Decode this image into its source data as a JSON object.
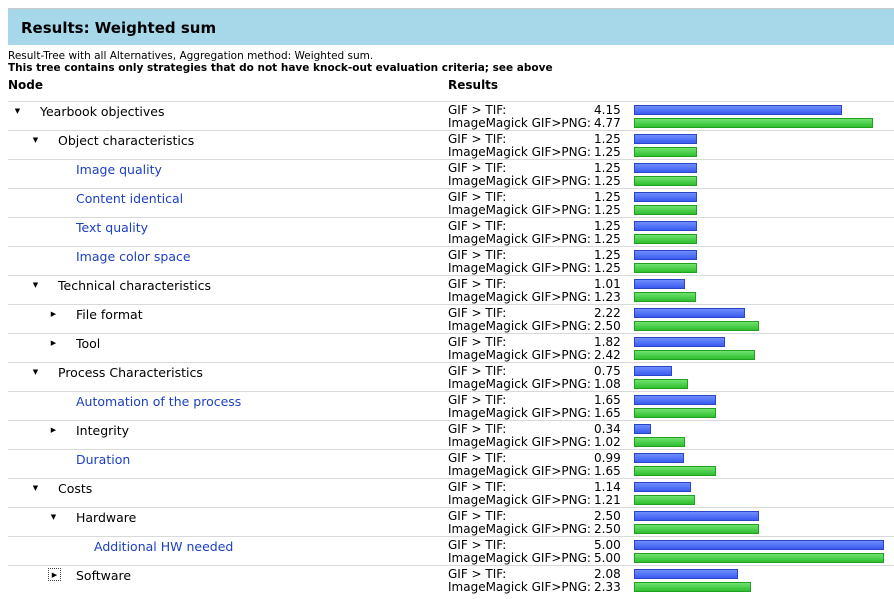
{
  "header": {
    "title": "Results: Weighted sum"
  },
  "description": {
    "line1": "Result-Tree with all Alternatives, Aggregation method: Weighted sum.",
    "line2": "This tree contains only strategies that do not have knock-out evaluation criteria; see above"
  },
  "columns": {
    "node": "Node",
    "results": "Results"
  },
  "alternatives": [
    "GIF > TIF:",
    "ImageMagick GIF>PNG:"
  ],
  "colors": {
    "alt1": "#3a5cf0",
    "alt2": "#2fbf2f",
    "link": "#1c3fc2",
    "header_bg": "#a6d8ea"
  },
  "max_value": 5.0,
  "rows": [
    {
      "label": "Yearbook objectives",
      "level": 0,
      "toggle": "expanded",
      "leaf": false,
      "v1": "4.15",
      "v2": "4.77"
    },
    {
      "label": "Object characteristics",
      "level": 1,
      "toggle": "expanded",
      "leaf": false,
      "v1": "1.25",
      "v2": "1.25"
    },
    {
      "label": "Image quality",
      "level": 2,
      "toggle": "none",
      "leaf": true,
      "v1": "1.25",
      "v2": "1.25"
    },
    {
      "label": "Content identical",
      "level": 2,
      "toggle": "none",
      "leaf": true,
      "v1": "1.25",
      "v2": "1.25"
    },
    {
      "label": "Text quality",
      "level": 2,
      "toggle": "none",
      "leaf": true,
      "v1": "1.25",
      "v2": "1.25"
    },
    {
      "label": "Image color space",
      "level": 2,
      "toggle": "none",
      "leaf": true,
      "v1": "1.25",
      "v2": "1.25"
    },
    {
      "label": "Technical characteristics",
      "level": 1,
      "toggle": "expanded",
      "leaf": false,
      "v1": "1.01",
      "v2": "1.23"
    },
    {
      "label": "File format",
      "level": 2,
      "toggle": "collapsed",
      "leaf": false,
      "v1": "2.22",
      "v2": "2.50"
    },
    {
      "label": "Tool",
      "level": 2,
      "toggle": "collapsed",
      "leaf": false,
      "v1": "1.82",
      "v2": "2.42"
    },
    {
      "label": "Process Characteristics",
      "level": 1,
      "toggle": "expanded",
      "leaf": false,
      "v1": "0.75",
      "v2": "1.08"
    },
    {
      "label": "Automation of the process",
      "level": 2,
      "toggle": "none",
      "leaf": true,
      "v1": "1.65",
      "v2": "1.65"
    },
    {
      "label": "Integrity",
      "level": 2,
      "toggle": "collapsed",
      "leaf": false,
      "v1": "0.34",
      "v2": "1.02"
    },
    {
      "label": "Duration",
      "level": 2,
      "toggle": "none",
      "leaf": true,
      "v1": "0.99",
      "v2": "1.65"
    },
    {
      "label": "Costs",
      "level": 1,
      "toggle": "expanded",
      "leaf": false,
      "v1": "1.14",
      "v2": "1.21"
    },
    {
      "label": "Hardware",
      "level": 2,
      "toggle": "expanded",
      "leaf": false,
      "v1": "2.50",
      "v2": "2.50"
    },
    {
      "label": "Additional HW needed",
      "level": 3,
      "toggle": "none",
      "leaf": true,
      "v1": "5.00",
      "v2": "5.00"
    },
    {
      "label": "Software",
      "level": 2,
      "toggle": "collapsed-focus",
      "leaf": false,
      "v1": "2.08",
      "v2": "2.33"
    }
  ]
}
